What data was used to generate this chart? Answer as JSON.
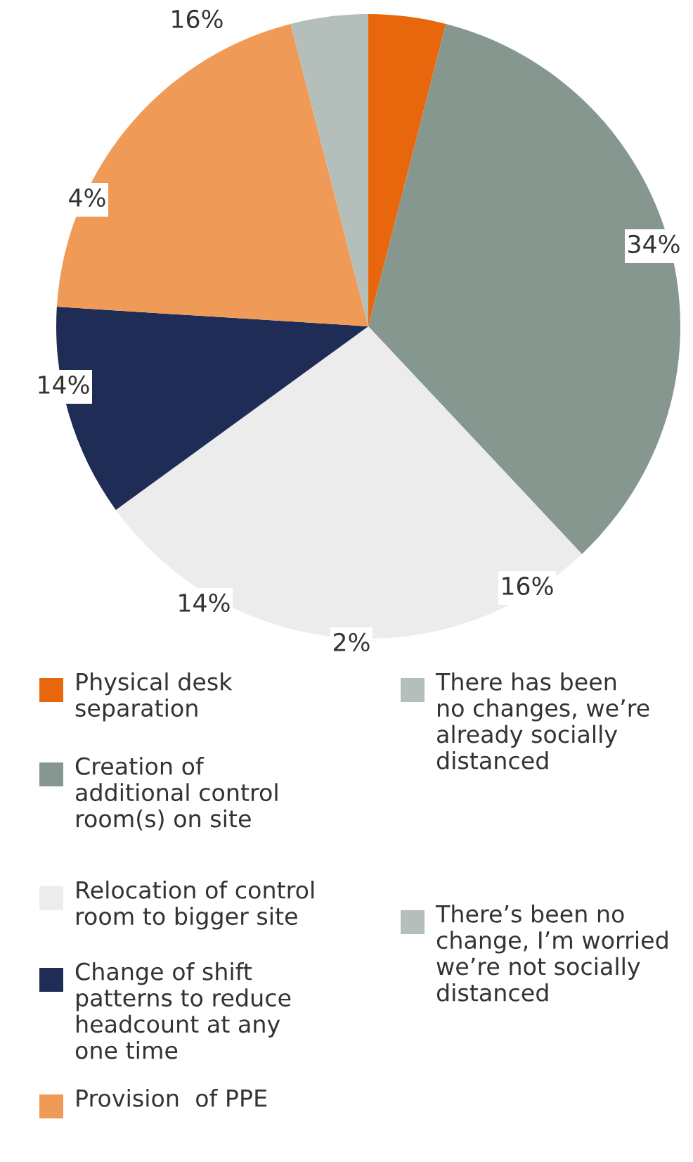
{
  "chart_data": {
    "type": "pie",
    "categories": [
      "Physical desk\nseparation",
      "Creation of\nadditional control\nroom(s) on site",
      "Relocation of control\nroom to bigger site",
      "Change of shift\npatterns to reduce\nheadcount at any\none time",
      "Provision  of PPE",
      "There has been\nno changes, we’re\nalready socially\ndistanced",
      "There’s been no\nchange, I’m worried\nwe’re not socially\ndistanced"
    ],
    "values": [
      4,
      34,
      27,
      11,
      20,
      4,
      0
    ],
    "colors": [
      "#e8670c",
      "#85978f",
      "#ececec",
      "#1f2d56",
      "#f09a58",
      "#b4bfbb",
      "#b4bfbb"
    ],
    "annotations": [
      "16%",
      "4%",
      "14%",
      "14%",
      "2%",
      "16%",
      "34%"
    ],
    "legend": "bottom"
  }
}
